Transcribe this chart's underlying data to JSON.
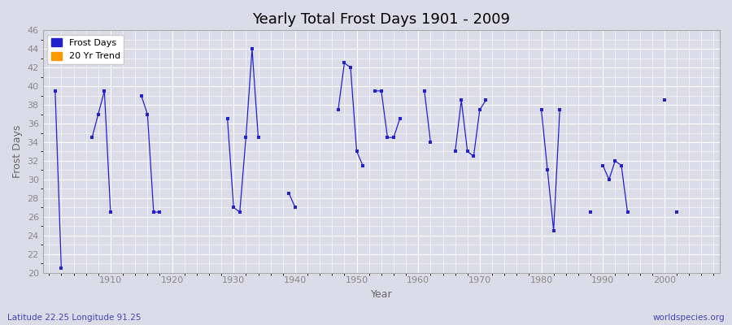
{
  "title": "Yearly Total Frost Days 1901 - 2009",
  "xlabel": "Year",
  "ylabel": "Frost Days",
  "subtitle": "Latitude 22.25 Longitude 91.25",
  "watermark": "worldspecies.org",
  "ylim": [
    20,
    46
  ],
  "frost_days_color": "#2222cc",
  "trend_color": "#ff9900",
  "bg_color": "#dcdce8",
  "grid_color": "#ffffff",
  "segments": [
    {
      "years": [
        1901,
        1902
      ],
      "values": [
        39.5,
        20.5
      ]
    },
    {
      "years": [
        1907,
        1908,
        1909,
        1910
      ],
      "values": [
        34.5,
        37.0,
        39.5,
        26.5
      ]
    },
    {
      "years": [
        1915,
        1916,
        1917,
        1918
      ],
      "values": [
        39.0,
        37.0,
        26.5,
        26.5
      ]
    },
    {
      "years": [
        1929,
        1930,
        1931,
        1932,
        1933,
        1934
      ],
      "values": [
        36.5,
        27.0,
        26.5,
        34.5,
        44.0,
        34.5
      ]
    },
    {
      "years": [
        1939,
        1940
      ],
      "values": [
        28.5,
        27.0
      ]
    },
    {
      "years": [
        1947,
        1948,
        1949,
        1950,
        1951
      ],
      "values": [
        37.5,
        42.5,
        42.0,
        33.0,
        31.5
      ]
    },
    {
      "years": [
        1953,
        1954,
        1955,
        1956,
        1957
      ],
      "values": [
        39.5,
        39.5,
        34.5,
        34.5,
        36.5
      ]
    },
    {
      "years": [
        1961,
        1962
      ],
      "values": [
        39.5,
        34.0
      ]
    },
    {
      "years": [
        1966,
        1967,
        1968,
        1969,
        1970,
        1971
      ],
      "values": [
        33.0,
        38.5,
        33.0,
        32.5,
        37.5,
        38.5
      ]
    },
    {
      "years": [
        1980,
        1981,
        1982,
        1983
      ],
      "values": [
        37.5,
        31.0,
        24.5,
        37.5
      ]
    },
    {
      "years": [
        1988
      ],
      "values": [
        26.5
      ]
    },
    {
      "years": [
        1990,
        1991,
        1992,
        1993,
        1994
      ],
      "values": [
        31.5,
        30.0,
        32.0,
        31.5,
        26.5
      ]
    },
    {
      "years": [
        2000
      ],
      "values": [
        38.5
      ]
    },
    {
      "years": [
        2002
      ],
      "values": [
        26.5
      ]
    }
  ]
}
